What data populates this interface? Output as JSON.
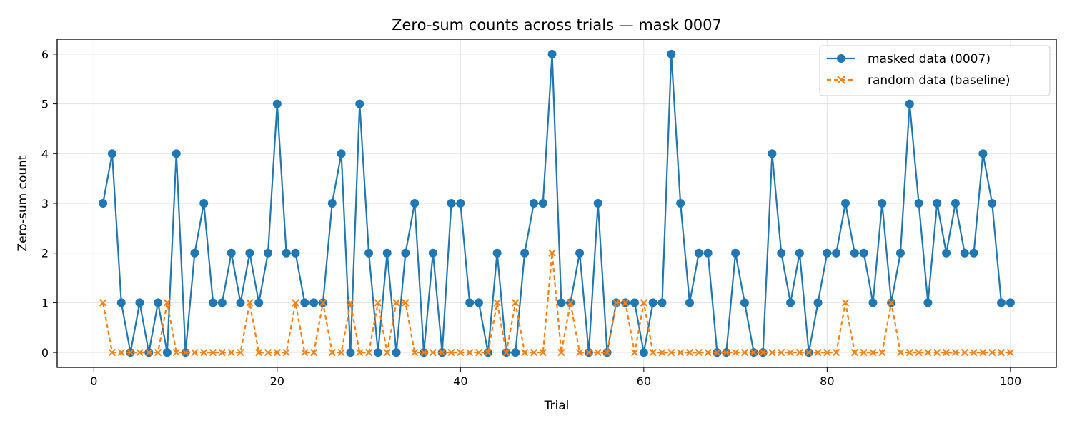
{
  "chart_data": {
    "type": "line",
    "title": "Zero-sum counts across trials — mask 0007",
    "xlabel": "Trial",
    "ylabel": "Zero-sum count",
    "xlim": [
      -4,
      105
    ],
    "ylim": [
      -0.3,
      6.3
    ],
    "xticks": [
      0,
      20,
      40,
      60,
      80,
      100
    ],
    "yticks": [
      0,
      1,
      2,
      3,
      4,
      5,
      6
    ],
    "grid": true,
    "legend_position": "top-right",
    "series": [
      {
        "name": "masked data (0007)",
        "color": "#1f77b4",
        "line_style": "solid",
        "marker": "circle",
        "x": [
          1,
          2,
          3,
          4,
          5,
          6,
          7,
          8,
          9,
          10,
          11,
          12,
          13,
          14,
          15,
          16,
          17,
          18,
          19,
          20,
          21,
          22,
          23,
          24,
          25,
          26,
          27,
          28,
          29,
          30,
          31,
          32,
          33,
          34,
          35,
          36,
          37,
          38,
          39,
          40,
          41,
          42,
          43,
          44,
          45,
          46,
          47,
          48,
          49,
          50,
          51,
          52,
          53,
          54,
          55,
          56,
          57,
          58,
          59,
          60,
          61,
          62,
          63,
          64,
          65,
          66,
          67,
          68,
          69,
          70,
          71,
          72,
          73,
          74,
          75,
          76,
          77,
          78,
          79,
          80,
          81,
          82,
          83,
          84,
          85,
          86,
          87,
          88,
          89,
          90,
          91,
          92,
          93,
          94,
          95,
          96,
          97,
          98,
          99,
          100
        ],
        "values": [
          3,
          4,
          1,
          0,
          1,
          0,
          1,
          0,
          4,
          0,
          2,
          3,
          1,
          1,
          2,
          1,
          2,
          1,
          2,
          5,
          2,
          2,
          1,
          1,
          1,
          3,
          4,
          0,
          5,
          2,
          0,
          2,
          0,
          2,
          3,
          0,
          2,
          0,
          3,
          3,
          1,
          1,
          0,
          2,
          0,
          0,
          2,
          3,
          3,
          6,
          1,
          1,
          2,
          0,
          3,
          0,
          1,
          1,
          1,
          0,
          1,
          1,
          6,
          3,
          1,
          2,
          2,
          0,
          0,
          2,
          1,
          0,
          0,
          4,
          2,
          1,
          2,
          0,
          1,
          2,
          2,
          3,
          2,
          2,
          1,
          3,
          1,
          2,
          5,
          3,
          1,
          3,
          2,
          3,
          2,
          2,
          4,
          3,
          1,
          1
        ]
      },
      {
        "name": "random data (baseline)",
        "color": "#ff7f0e",
        "line_style": "dashed",
        "marker": "x",
        "x": [
          1,
          2,
          3,
          4,
          5,
          6,
          7,
          8,
          9,
          10,
          11,
          12,
          13,
          14,
          15,
          16,
          17,
          18,
          19,
          20,
          21,
          22,
          23,
          24,
          25,
          26,
          27,
          28,
          29,
          30,
          31,
          32,
          33,
          34,
          35,
          36,
          37,
          38,
          39,
          40,
          41,
          42,
          43,
          44,
          45,
          46,
          47,
          48,
          49,
          50,
          51,
          52,
          53,
          54,
          55,
          56,
          57,
          58,
          59,
          60,
          61,
          62,
          63,
          64,
          65,
          66,
          67,
          68,
          69,
          70,
          71,
          72,
          73,
          74,
          75,
          76,
          77,
          78,
          79,
          80,
          81,
          82,
          83,
          84,
          85,
          86,
          87,
          88,
          89,
          90,
          91,
          92,
          93,
          94,
          95,
          96,
          97,
          98,
          99,
          100
        ],
        "values": [
          1,
          0,
          0,
          0,
          0,
          0,
          0,
          1,
          0,
          0,
          0,
          0,
          0,
          0,
          0,
          0,
          1,
          0,
          0,
          0,
          0,
          1,
          0,
          0,
          1,
          0,
          0,
          1,
          0,
          0,
          1,
          0,
          1,
          1,
          0,
          0,
          0,
          0,
          0,
          0,
          0,
          0,
          0,
          1,
          0,
          1,
          0,
          0,
          0,
          2,
          0,
          1,
          0,
          0,
          0,
          0,
          1,
          1,
          0,
          1,
          0,
          0,
          0,
          0,
          0,
          0,
          0,
          0,
          0,
          0,
          0,
          0,
          0,
          0,
          0,
          0,
          0,
          0,
          0,
          0,
          0,
          1,
          0,
          0,
          0,
          0,
          1,
          0,
          0,
          0,
          0,
          0,
          0,
          0,
          0,
          0,
          0,
          0,
          0,
          0
        ]
      }
    ]
  }
}
